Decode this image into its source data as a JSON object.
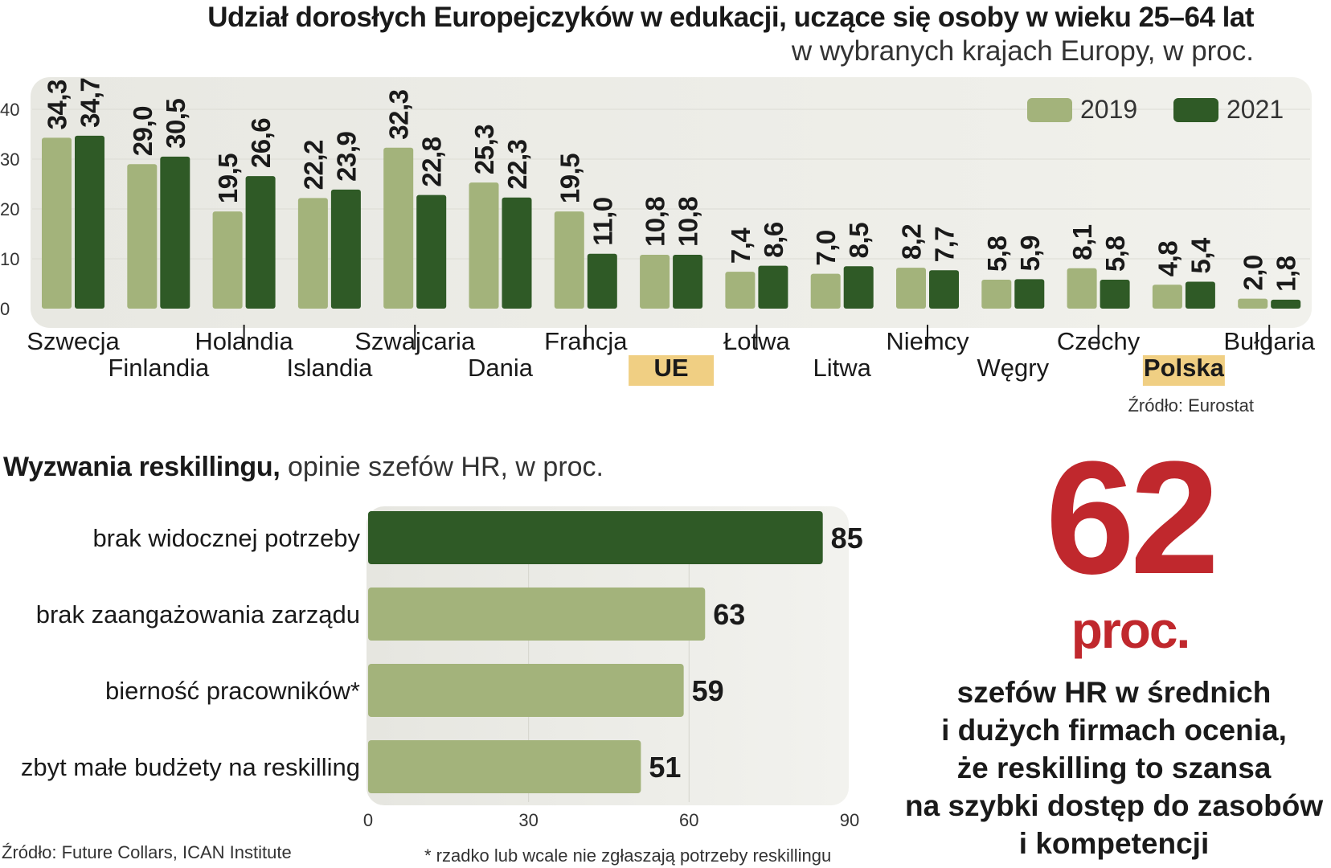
{
  "chart_data": [
    {
      "type": "bar",
      "title": "Udział dorosłych Europejczyków w edukacji, uczące się osoby w wieku 25–64 lat",
      "subtitle": "w wybranych krajach Europy, w proc.",
      "categories": [
        "Szwecja",
        "Finlandia",
        "Holandia",
        "Islandia",
        "Szwajcaria",
        "Dania",
        "Francja",
        "UE",
        "Łotwa",
        "Litwa",
        "Niemcy",
        "Węgry",
        "Czechy",
        "Polska",
        "Bułgaria"
      ],
      "highlighted_categories": [
        "UE",
        "Polska"
      ],
      "series": [
        {
          "name": "2019",
          "values": [
            34.3,
            29.0,
            19.5,
            22.2,
            32.3,
            25.3,
            19.5,
            10.8,
            7.4,
            7.0,
            8.2,
            5.8,
            8.1,
            4.8,
            2.0
          ],
          "labels": [
            "34,3",
            "29,0",
            "19,5",
            "22,2",
            "32,3",
            "25,3",
            "19,5",
            "10,8",
            "7,4",
            "7,0",
            "8,2",
            "5,8",
            "8,1",
            "4,8",
            "2,0"
          ],
          "color": "#a3b37b"
        },
        {
          "name": "2021",
          "values": [
            34.7,
            30.5,
            26.6,
            23.9,
            22.8,
            22.3,
            11.0,
            10.8,
            8.6,
            8.5,
            7.7,
            5.9,
            5.8,
            5.4,
            1.8
          ],
          "labels": [
            "34,7",
            "30,5",
            "26,6",
            "23,9",
            "22,8",
            "22,3",
            "11,0",
            "10,8",
            "8,6",
            "8,5",
            "7,7",
            "5,9",
            "5,8",
            "5,4",
            "1,8"
          ],
          "color": "#2f5a26"
        }
      ],
      "yticks": [
        "0",
        "10",
        "20",
        "30",
        "40"
      ],
      "ylim": [
        0,
        40
      ],
      "legend_position": "top-right",
      "source": "Źródło: Eurostat"
    },
    {
      "type": "bar",
      "orientation": "horizontal",
      "title_bold": "Wyzwania reskillingu,",
      "title_rest": " opinie szefów HR, w proc.",
      "categories": [
        "brak widocznej potrzeby",
        "brak zaangażowania zarządu",
        "bierność pracowników*",
        "zbyt małe budżety na reskilling"
      ],
      "values": [
        85,
        63,
        59,
        51
      ],
      "labels": [
        "85",
        "63",
        "59",
        "51"
      ],
      "highlight_color": "#2f5a26",
      "color": "#a3b37b",
      "xticks": [
        "0",
        "30",
        "60",
        "90"
      ],
      "xlim": [
        0,
        90
      ],
      "source": "Źródło: Future Collars, ICAN Institute",
      "footnote": "* rzadko lub wcale nie zgłaszają potrzeby reskillingu"
    }
  ],
  "callout": {
    "number": "62",
    "unit": "proc.",
    "lines": [
      "szefów HR w średnich",
      "i dużych firmach ocenia,",
      "że reskilling to szansa",
      "na szybki dostęp do zasobów",
      "i kompetencji"
    ],
    "color": "#c0282d"
  },
  "colors": {
    "panel_background": "#eeeeea",
    "highlight_label_background": "#f0cf83"
  }
}
